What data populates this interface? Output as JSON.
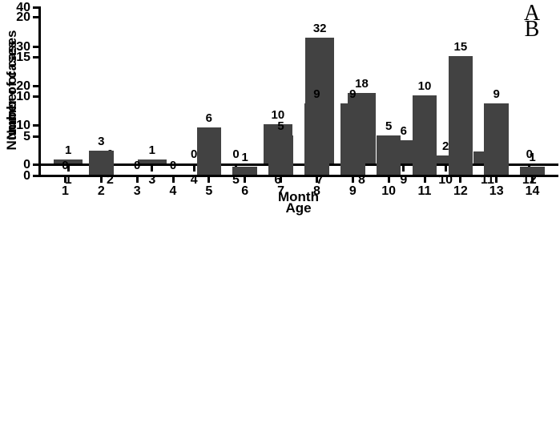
{
  "figure": {
    "background": "#ffffff",
    "bar_color": "#424242",
    "axis_color": "#000000",
    "text_color": "#000000"
  },
  "chart_data": [
    {
      "type": "bar",
      "panel_label": "A",
      "categories": [
        "1",
        "2",
        "3",
        "4",
        "5",
        "6",
        "7",
        "8",
        "9",
        "10",
        "11",
        "12"
      ],
      "values": [
        1,
        0,
        1,
        0,
        0,
        10,
        32,
        18,
        6,
        2,
        3,
        0
      ],
      "xlabel": "Month",
      "ylabel": "Number of cases",
      "ylim": [
        0,
        40
      ],
      "yticks": [
        0,
        10,
        20,
        30,
        40
      ],
      "value_labels": true,
      "grid": false,
      "legend": "none"
    },
    {
      "type": "bar",
      "panel_label": "B",
      "categories": [
        "1",
        "2",
        "3",
        "4",
        "5",
        "6",
        "7",
        "8",
        "9",
        "10",
        "11",
        "12",
        "13",
        "14"
      ],
      "values": [
        0,
        3,
        0,
        0,
        6,
        1,
        5,
        9,
        9,
        5,
        10,
        15,
        9,
        1
      ],
      "xlabel": "Age",
      "ylabel": "Number of cases",
      "ylim": [
        0,
        20
      ],
      "yticks": [
        0,
        5,
        10,
        15,
        20
      ],
      "value_labels": true,
      "grid": false,
      "legend": "none"
    }
  ]
}
